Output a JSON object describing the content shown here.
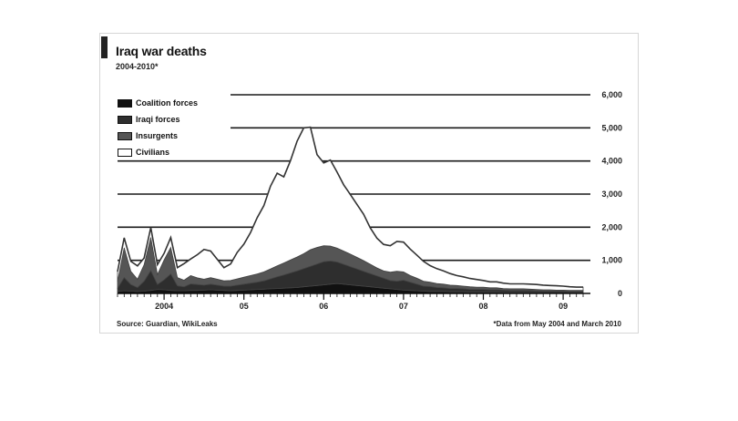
{
  "title": "Iraq war deaths",
  "subtitle": "2004-2010*",
  "source": "Source: Guardian, WikiLeaks",
  "footnote": "*Data from May 2004 and March 2010",
  "chart_data": {
    "type": "area",
    "stacked": true,
    "x_start": "2004-05",
    "x_end": "2010-03",
    "x_tick_labels": [
      "2004",
      "05",
      "06",
      "07",
      "08",
      "09"
    ],
    "x_tick_values": [
      "2004-12",
      "2005-12",
      "2006-12",
      "2007-12",
      "2008-12",
      "2009-12"
    ],
    "y_axis_side": "right",
    "ylim": [
      0,
      6000
    ],
    "y_ticks": [
      0,
      1000,
      2000,
      3000,
      4000,
      5000,
      6000
    ],
    "y_tick_labels": [
      "0",
      "1,000",
      "2,000",
      "3,000",
      "4,000",
      "5,000",
      "6,000"
    ],
    "grid": true,
    "legend_position": "top-left",
    "series": [
      {
        "name": "Coalition forces",
        "color": "#111111",
        "values": [
          60,
          80,
          70,
          60,
          70,
          90,
          120,
          110,
          90,
          80,
          80,
          90,
          90,
          100,
          110,
          100,
          90,
          80,
          90,
          100,
          110,
          120,
          130,
          140,
          150,
          160,
          170,
          180,
          200,
          220,
          240,
          260,
          280,
          300,
          280,
          260,
          240,
          220,
          200,
          180,
          160,
          140,
          120,
          100,
          90,
          80,
          70,
          60,
          60,
          60,
          50,
          50,
          50,
          40,
          40,
          40,
          40,
          40,
          30,
          30,
          30,
          30,
          30,
          30,
          20,
          20,
          20,
          20,
          20,
          20,
          20
        ]
      },
      {
        "name": "Iraqi forces",
        "color": "#2e2e2e",
        "values": [
          100,
          400,
          200,
          120,
          300,
          600,
          150,
          300,
          500,
          150,
          120,
          200,
          180,
          150,
          170,
          150,
          130,
          140,
          160,
          180,
          200,
          220,
          250,
          300,
          350,
          400,
          450,
          500,
          550,
          600,
          650,
          700,
          700,
          650,
          600,
          550,
          500,
          450,
          400,
          350,
          300,
          250,
          250,
          300,
          250,
          200,
          150,
          150,
          120,
          110,
          100,
          100,
          90,
          80,
          80,
          80,
          70,
          70,
          70,
          60,
          60,
          60,
          60,
          50,
          50,
          50,
          50,
          50,
          40,
          40,
          40
        ]
      },
      {
        "name": "Insurgents",
        "color": "#555555",
        "values": [
          200,
          900,
          400,
          250,
          500,
          1000,
          300,
          600,
          800,
          250,
          200,
          250,
          200,
          180,
          200,
          180,
          160,
          170,
          190,
          210,
          230,
          250,
          270,
          300,
          330,
          360,
          390,
          420,
          450,
          500,
          500,
          480,
          450,
          420,
          400,
          380,
          350,
          320,
          280,
          240,
          220,
          250,
          300,
          250,
          200,
          180,
          150,
          130,
          120,
          110,
          100,
          90,
          80,
          80,
          70,
          70,
          60,
          60,
          50,
          50,
          50,
          50,
          40,
          40,
          40,
          40,
          30,
          30,
          30,
          30,
          30
        ]
      },
      {
        "name": "Civilians",
        "color": "#ffffff",
        "values": [
          300,
          300,
          300,
          400,
          200,
          300,
          300,
          200,
          300,
          300,
          500,
          500,
          700,
          900,
          800,
          600,
          400,
          500,
          800,
          1000,
          1300,
          1700,
          2000,
          2500,
          2800,
          2600,
          3000,
          3500,
          3800,
          3700,
          2800,
          2500,
          2600,
          2300,
          2000,
          1800,
          1600,
          1400,
          1100,
          900,
          800,
          800,
          900,
          900,
          800,
          700,
          600,
          500,
          450,
          400,
          350,
          300,
          280,
          250,
          230,
          200,
          180,
          180,
          160,
          150,
          150,
          150,
          150,
          150,
          140,
          130,
          130,
          120,
          110,
          100,
          100
        ]
      }
    ]
  }
}
